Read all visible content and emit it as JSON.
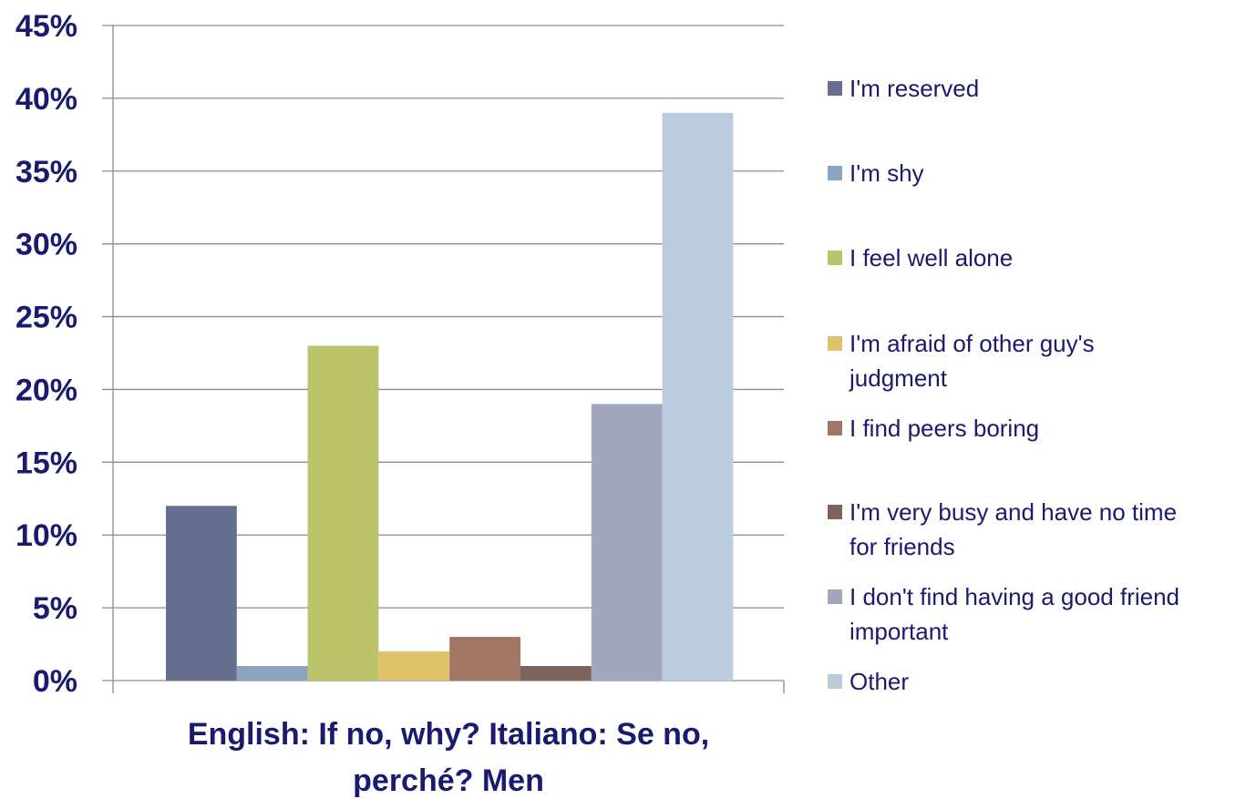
{
  "chart_data": {
    "type": "bar",
    "xlabel_lines": [
      "English: If no, why?  Italiano: Se no,",
      "perché? Men"
    ],
    "ylabel": "",
    "ylim": [
      0,
      45
    ],
    "ytick_labels": [
      "0%",
      "5%",
      "10%",
      "15%",
      "20%",
      "25%",
      "30%",
      "35%",
      "40%",
      "45%"
    ],
    "grid": true,
    "legend_position": "right",
    "series": [
      {
        "name": "I'm reserved",
        "label_lines": [
          "I'm reserved"
        ],
        "value": 12,
        "color": "#666f90"
      },
      {
        "name": "I'm shy",
        "label_lines": [
          "I'm shy"
        ],
        "value": 1,
        "color": "#8ba5bd"
      },
      {
        "name": "I feel well alone",
        "label_lines": [
          "I feel well alone"
        ],
        "value": 23,
        "color": "#bbc36b"
      },
      {
        "name": "I'm afraid of other guy's judgment",
        "label_lines": [
          "I'm afraid of other guy's",
          "judgment"
        ],
        "value": 2,
        "color": "#dfc26a"
      },
      {
        "name": "I find peers boring",
        "label_lines": [
          "I find peers boring"
        ],
        "value": 3,
        "color": "#a37564"
      },
      {
        "name": "I'm very busy and have no time for friends",
        "label_lines": [
          "I'm very busy and have no time",
          "for friends"
        ],
        "value": 1,
        "color": "#7e625c"
      },
      {
        "name": "I don't find having a good friend important",
        "label_lines": [
          "I don't find having a good friend",
          "important"
        ],
        "value": 19,
        "color": "#a3a7bd"
      },
      {
        "name": "Other",
        "label_lines": [
          "Other"
        ],
        "value": 39,
        "color": "#bbccdc"
      }
    ]
  }
}
